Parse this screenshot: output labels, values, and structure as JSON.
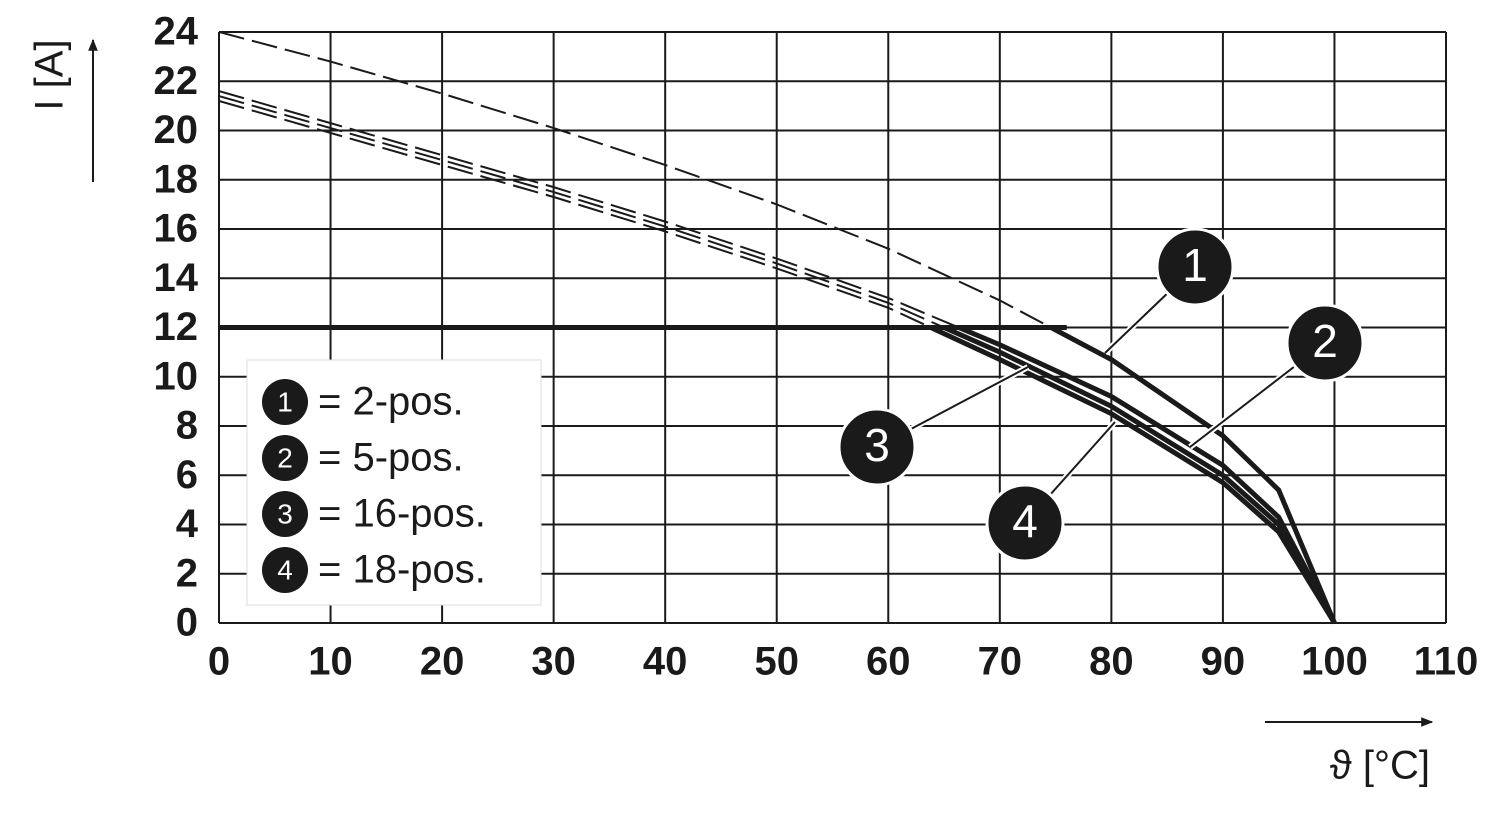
{
  "chart_data": {
    "type": "line",
    "y_label": "I [A]",
    "x_label": "ϑ [°C]",
    "xlim": [
      0,
      110
    ],
    "xticks": [
      0,
      10,
      20,
      30,
      40,
      50,
      60,
      70,
      80,
      90,
      100,
      110
    ],
    "ylim": [
      0,
      24
    ],
    "yticks": [
      0,
      2,
      4,
      6,
      8,
      10,
      12,
      14,
      16,
      18,
      20,
      22,
      24
    ],
    "grid": true,
    "legend": "lower left",
    "x": [
      0,
      10,
      20,
      30,
      40,
      50,
      60,
      70,
      80,
      90,
      95,
      100
    ],
    "limit": {
      "value": 12,
      "x": [
        0,
        76
      ]
    },
    "series": [
      {
        "marker": "1",
        "name": "= 2-pos.",
        "color": "#1a1a1a",
        "values": [
          24,
          22.8,
          21.5,
          20.1,
          18.6,
          17.0,
          15.2,
          13.1,
          10.7,
          7.6,
          5.4,
          0
        ]
      },
      {
        "marker": "2",
        "name": "= 5-pos.",
        "color": "#1a1a1a",
        "values": [
          21.6,
          20.3,
          19.0,
          17.7,
          16.3,
          14.8,
          13.2,
          11.3,
          9.2,
          6.4,
          4.3,
          0
        ]
      },
      {
        "marker": "3",
        "name": "= 16-pos.",
        "color": "#1a1a1a",
        "values": [
          21.4,
          20.1,
          18.8,
          17.5,
          16.1,
          14.6,
          13.0,
          11.0,
          8.8,
          6.0,
          4.0,
          0
        ]
      },
      {
        "marker": "4",
        "name": "= 18-pos.",
        "color": "#1a1a1a",
        "values": [
          21.2,
          19.9,
          18.6,
          17.3,
          15.9,
          14.4,
          12.8,
          10.7,
          8.5,
          5.7,
          3.7,
          0
        ]
      }
    ]
  }
}
